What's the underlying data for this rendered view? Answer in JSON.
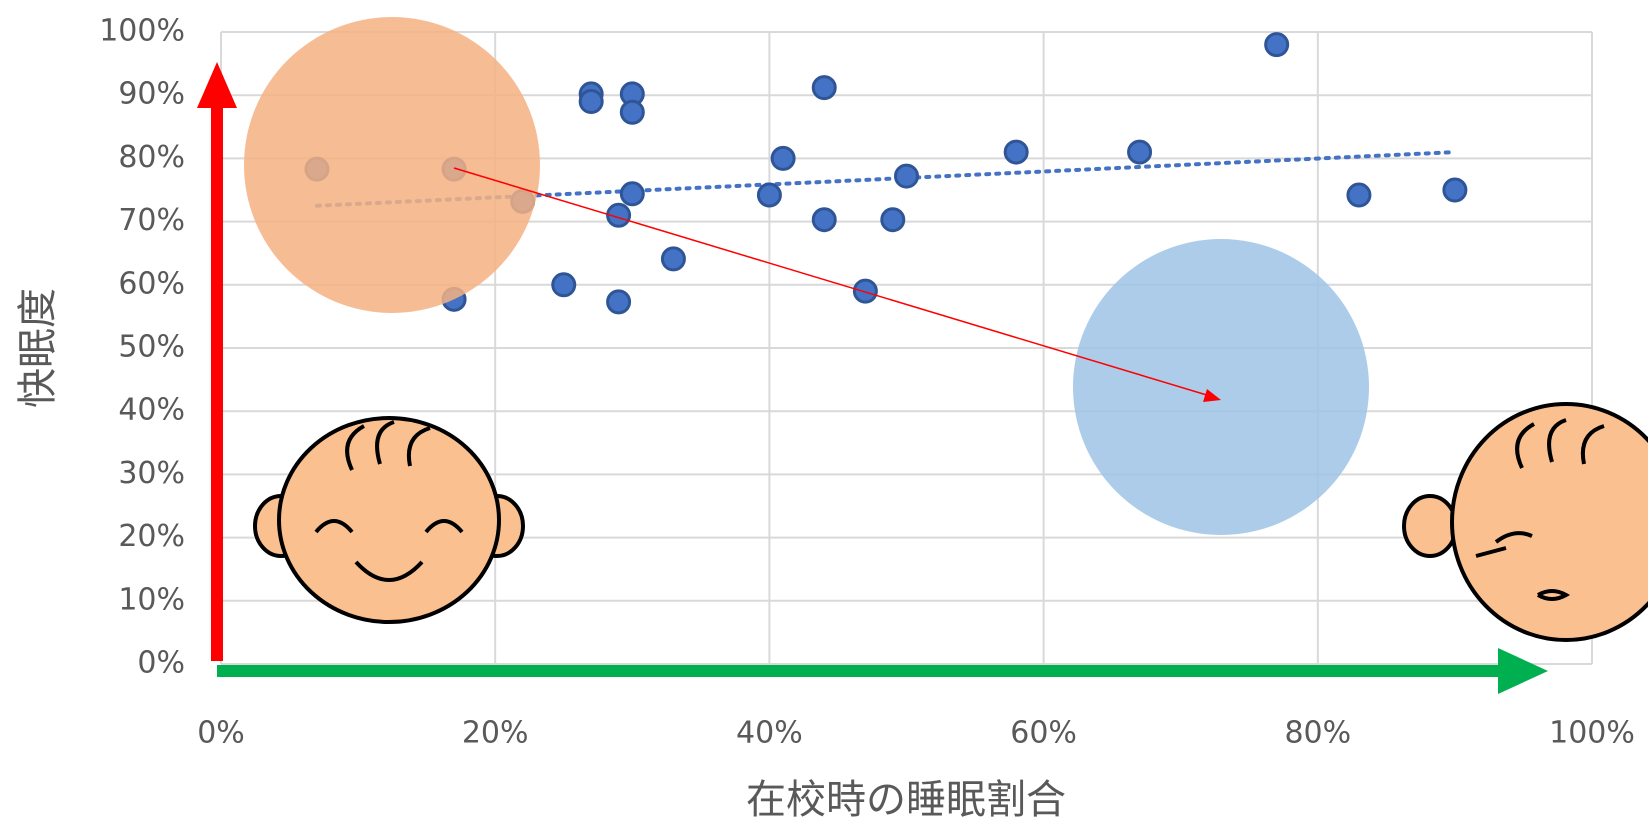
{
  "chart_data": {
    "type": "scatter",
    "x_label": "在校時の睡眠割合",
    "y_label": "快眠度",
    "x": [
      7,
      17,
      17,
      22,
      25,
      27,
      27,
      29,
      29,
      30,
      30,
      30,
      33,
      40,
      41,
      44,
      44,
      47,
      49,
      50,
      58,
      67,
      77,
      83,
      90
    ],
    "values": [
      78.3,
      78.3,
      57.7,
      73.2,
      60,
      90.2,
      89,
      71,
      57.3,
      90.2,
      87.3,
      74.4,
      64.1,
      74.2,
      80,
      91.2,
      70.3,
      59,
      70.3,
      77.2,
      81,
      81,
      98,
      74.2,
      75
    ],
    "color": "#4472c4",
    "trendline": {
      "x": [
        7,
        90
      ],
      "y": [
        72.5,
        81
      ]
    },
    "xlim": [
      0,
      100
    ],
    "ylim": [
      0,
      100
    ],
    "xticks": [
      {
        "value": 0,
        "label": "0%"
      },
      {
        "value": 20,
        "label": "20%"
      },
      {
        "value": 40,
        "label": "40%"
      },
      {
        "value": 60,
        "label": "60%"
      },
      {
        "value": 80,
        "label": "80%"
      },
      {
        "value": 100,
        "label": "100%"
      }
    ],
    "yticks": [
      {
        "value": 0,
        "label": "0%"
      },
      {
        "value": 10,
        "label": "10%"
      },
      {
        "value": 20,
        "label": "20%"
      },
      {
        "value": 30,
        "label": "30%"
      },
      {
        "value": 40,
        "label": "40%"
      },
      {
        "value": 50,
        "label": "50%"
      },
      {
        "value": 60,
        "label": "60%"
      },
      {
        "value": 70,
        "label": "70%"
      },
      {
        "value": 80,
        "label": "80%"
      },
      {
        "value": 90,
        "label": "90%"
      },
      {
        "value": 100,
        "label": "100%"
      }
    ],
    "grid": true
  }
}
